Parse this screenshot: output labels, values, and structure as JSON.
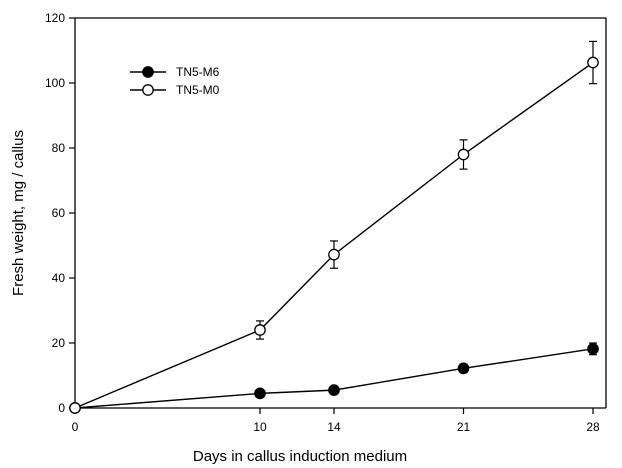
{
  "chart_data": {
    "type": "line",
    "xlabel": "Days in callus induction medium",
    "ylabel": "Fresh weight,  mg / callus",
    "xlim": [
      0,
      28
    ],
    "ylim": [
      0,
      120
    ],
    "x_ticks": [
      0,
      10,
      14,
      21,
      28
    ],
    "y_ticks": [
      0,
      20,
      40,
      60,
      80,
      100,
      120
    ],
    "grid": false,
    "legend_position": "top-left",
    "series": [
      {
        "name": "TN5-M6",
        "marker": "filled-circle",
        "x": [
          0,
          10,
          14,
          21,
          28
        ],
        "y": [
          0,
          4.5,
          5.5,
          12.2,
          18.2
        ],
        "error": [
          0,
          0.6,
          0.8,
          1.3,
          1.8
        ]
      },
      {
        "name": "TN5-M0",
        "marker": "open-circle",
        "x": [
          0,
          10,
          14,
          21,
          28
        ],
        "y": [
          0,
          24,
          47.2,
          78,
          106.3
        ],
        "error": [
          0,
          2.8,
          4.2,
          4.5,
          6.5
        ]
      }
    ]
  }
}
